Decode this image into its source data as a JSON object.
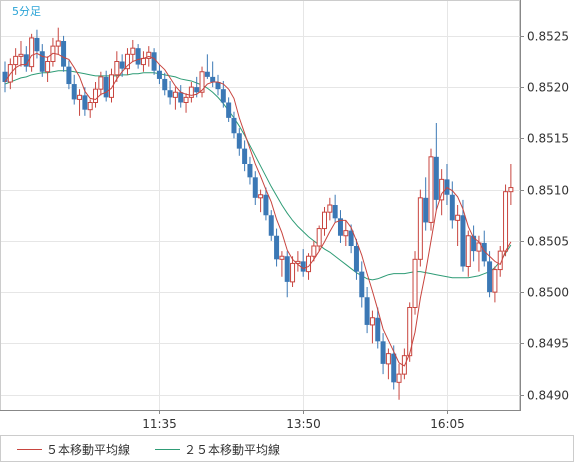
{
  "chart_data": {
    "type": "candlestick",
    "period_label": "5分足",
    "y_ticks": [
      "0.8525",
      "0.8520",
      "0.8515",
      "0.8510",
      "0.8505",
      "0.8500",
      "0.8495",
      "0.8490"
    ],
    "ylim": [
      0.84885,
      0.85285
    ],
    "x_ticks": [
      {
        "label": "11:35",
        "index": 29
      },
      {
        "label": "13:50",
        "index": 56
      },
      {
        "label": "16:05",
        "index": 83
      }
    ],
    "grid": true,
    "legend_position": "bottom-left",
    "colors": {
      "up": "#c8453f",
      "down": "#3b78b5",
      "ma5": "#c8453f",
      "ma25": "#2f9c76",
      "grid": "#e6e6e6",
      "axis": "#888888",
      "panel_border": "#cccccc",
      "period_label": "#29a3d6"
    },
    "series": [
      {
        "name": "５本移動平均線",
        "color": "#c8453f"
      },
      {
        "name": "２５本移動平均線",
        "color": "#2f9c76"
      }
    ],
    "candles": [
      [
        0.85215,
        0.85225,
        0.85195,
        0.85205
      ],
      [
        0.85205,
        0.85228,
        0.85198,
        0.85222
      ],
      [
        0.85222,
        0.85238,
        0.85212,
        0.8523
      ],
      [
        0.8523,
        0.85245,
        0.8522,
        0.85232
      ],
      [
        0.85232,
        0.8524,
        0.85215,
        0.8522
      ],
      [
        0.8522,
        0.85252,
        0.85215,
        0.85248
      ],
      [
        0.85248,
        0.85256,
        0.85228,
        0.85235
      ],
      [
        0.85235,
        0.85242,
        0.8521,
        0.85215
      ],
      [
        0.85215,
        0.8523,
        0.85205,
        0.85225
      ],
      [
        0.85225,
        0.85248,
        0.8522,
        0.8524
      ],
      [
        0.8524,
        0.85258,
        0.85232,
        0.85245
      ],
      [
        0.85245,
        0.8525,
        0.85215,
        0.8522
      ],
      [
        0.8522,
        0.85226,
        0.85198,
        0.85203
      ],
      [
        0.85203,
        0.85212,
        0.85183,
        0.85188
      ],
      [
        0.85188,
        0.85198,
        0.85172,
        0.85192
      ],
      [
        0.85192,
        0.852,
        0.85172,
        0.85178
      ],
      [
        0.85178,
        0.85188,
        0.8517,
        0.85185
      ],
      [
        0.85185,
        0.85205,
        0.8518,
        0.85198
      ],
      [
        0.85198,
        0.85215,
        0.85192,
        0.8521
      ],
      [
        0.8521,
        0.85216,
        0.85186,
        0.8519
      ],
      [
        0.8519,
        0.85218,
        0.85185,
        0.85212
      ],
      [
        0.85212,
        0.85235,
        0.85205,
        0.85225
      ],
      [
        0.85225,
        0.85232,
        0.8521,
        0.85218
      ],
      [
        0.85218,
        0.85238,
        0.85212,
        0.85232
      ],
      [
        0.85232,
        0.85246,
        0.85225,
        0.85238
      ],
      [
        0.85238,
        0.85242,
        0.85218,
        0.85222
      ],
      [
        0.85222,
        0.85235,
        0.85215,
        0.85228
      ],
      [
        0.85228,
        0.8524,
        0.8522,
        0.85234
      ],
      [
        0.85234,
        0.85238,
        0.85212,
        0.85216
      ],
      [
        0.85216,
        0.85222,
        0.85203,
        0.85208
      ],
      [
        0.85208,
        0.85214,
        0.85192,
        0.85197
      ],
      [
        0.85197,
        0.85206,
        0.85183,
        0.8519
      ],
      [
        0.8519,
        0.852,
        0.85178,
        0.85195
      ],
      [
        0.85195,
        0.85202,
        0.8518,
        0.85185
      ],
      [
        0.85185,
        0.85194,
        0.85175,
        0.8519
      ],
      [
        0.8519,
        0.85205,
        0.85185,
        0.852
      ],
      [
        0.852,
        0.8521,
        0.8519,
        0.85195
      ],
      [
        0.85195,
        0.8522,
        0.8519,
        0.85215
      ],
      [
        0.85215,
        0.85232,
        0.85208,
        0.8521
      ],
      [
        0.8521,
        0.85225,
        0.852,
        0.85205
      ],
      [
        0.85205,
        0.85212,
        0.85192,
        0.85198
      ],
      [
        0.85198,
        0.85206,
        0.8518,
        0.85185
      ],
      [
        0.85185,
        0.8519,
        0.85166,
        0.8517
      ],
      [
        0.8517,
        0.85176,
        0.8515,
        0.85155
      ],
      [
        0.85155,
        0.8516,
        0.85133,
        0.8514
      ],
      [
        0.8514,
        0.85148,
        0.85118,
        0.85125
      ],
      [
        0.85125,
        0.85132,
        0.85105,
        0.85112
      ],
      [
        0.85112,
        0.85118,
        0.85085,
        0.85092
      ],
      [
        0.85092,
        0.851,
        0.85078,
        0.85095
      ],
      [
        0.85095,
        0.85102,
        0.8507,
        0.85075
      ],
      [
        0.85075,
        0.8508,
        0.8505,
        0.85055
      ],
      [
        0.85055,
        0.85062,
        0.85025,
        0.85032
      ],
      [
        0.85032,
        0.8504,
        0.85015,
        0.85035
      ],
      [
        0.85035,
        0.8504,
        0.84995,
        0.8501
      ],
      [
        0.8501,
        0.85035,
        0.85005,
        0.85028
      ],
      [
        0.85028,
        0.8504,
        0.8502,
        0.8503
      ],
      [
        0.8503,
        0.85042,
        0.85015,
        0.8502
      ],
      [
        0.8502,
        0.85038,
        0.85012,
        0.85035
      ],
      [
        0.85035,
        0.8505,
        0.8503,
        0.85045
      ],
      [
        0.85045,
        0.85065,
        0.8504,
        0.85062
      ],
      [
        0.85062,
        0.85083,
        0.85055,
        0.85078
      ],
      [
        0.85078,
        0.85092,
        0.8507,
        0.85085
      ],
      [
        0.85085,
        0.85095,
        0.85068,
        0.85072
      ],
      [
        0.85072,
        0.8508,
        0.85048,
        0.85055
      ],
      [
        0.85055,
        0.8507,
        0.85045,
        0.8506
      ],
      [
        0.8506,
        0.85066,
        0.85038,
        0.85045
      ],
      [
        0.85045,
        0.85052,
        0.85012,
        0.8502
      ],
      [
        0.8502,
        0.8503,
        0.84985,
        0.84995
      ],
      [
        0.84995,
        0.85005,
        0.8496,
        0.84968
      ],
      [
        0.84968,
        0.84982,
        0.8495,
        0.84975
      ],
      [
        0.84975,
        0.84985,
        0.84945,
        0.84952
      ],
      [
        0.84952,
        0.8496,
        0.8492,
        0.8493
      ],
      [
        0.8493,
        0.84945,
        0.84915,
        0.8494
      ],
      [
        0.8494,
        0.84948,
        0.84905,
        0.84912
      ],
      [
        0.84912,
        0.8493,
        0.84895,
        0.8492
      ],
      [
        0.8492,
        0.84945,
        0.84915,
        0.84938
      ],
      [
        0.84938,
        0.8499,
        0.84932,
        0.84985
      ],
      [
        0.84985,
        0.8504,
        0.84978,
        0.85032
      ],
      [
        0.85032,
        0.851,
        0.85025,
        0.85092
      ],
      [
        0.85092,
        0.85112,
        0.8506,
        0.85068
      ],
      [
        0.85068,
        0.8514,
        0.8506,
        0.85132
      ],
      [
        0.85132,
        0.85165,
        0.8508,
        0.8509
      ],
      [
        0.8509,
        0.8512,
        0.85075,
        0.8511
      ],
      [
        0.8511,
        0.85125,
        0.85085,
        0.85095
      ],
      [
        0.85095,
        0.85108,
        0.85062,
        0.8507
      ],
      [
        0.8507,
        0.85085,
        0.85045,
        0.85075
      ],
      [
        0.85075,
        0.8509,
        0.8502,
        0.85025
      ],
      [
        0.85025,
        0.8506,
        0.85015,
        0.85055
      ],
      [
        0.85055,
        0.85065,
        0.8503,
        0.8504
      ],
      [
        0.8504,
        0.85055,
        0.8502,
        0.85048
      ],
      [
        0.85048,
        0.8506,
        0.85025,
        0.8503
      ],
      [
        0.8503,
        0.8504,
        0.84995,
        0.85
      ],
      [
        0.85,
        0.85025,
        0.8499,
        0.85022
      ],
      [
        0.85022,
        0.85045,
        0.85015,
        0.8504
      ],
      [
        0.8504,
        0.85105,
        0.85035,
        0.85098
      ],
      [
        0.85098,
        0.85125,
        0.85085,
        0.85102
      ]
    ],
    "ma5": [
      0.85205,
      0.85213,
      0.85219,
      0.85222,
      0.85222,
      0.85231,
      0.85233,
      0.8523,
      0.85229,
      0.85233,
      0.85232,
      0.85229,
      0.85227,
      0.85219,
      0.8521,
      0.85196,
      0.85189,
      0.85188,
      0.85193,
      0.85195,
      0.85199,
      0.85208,
      0.85215,
      0.85221,
      0.85225,
      0.85227,
      0.85228,
      0.8523,
      0.85228,
      0.85222,
      0.85217,
      0.85209,
      0.85201,
      0.85195,
      0.85193,
      0.85192,
      0.85193,
      0.85197,
      0.85203,
      0.85205,
      0.85205,
      0.85203,
      0.85198,
      0.85189,
      0.8517,
      0.85155,
      0.8514,
      0.85125,
      0.85113,
      0.851,
      0.85088,
      0.85071,
      0.85058,
      0.85041,
      0.85032,
      0.85027,
      0.85023,
      0.85025,
      0.85032,
      0.8504,
      0.85049,
      0.85059,
      0.85068,
      0.8507,
      0.8507,
      0.85063,
      0.8505,
      0.85036,
      0.85018,
      0.85001,
      0.84983,
      0.84964,
      0.84953,
      0.84942,
      0.84931,
      0.84928,
      0.8494,
      0.84961,
      0.84994,
      0.8502,
      0.8505,
      0.8508,
      0.85096,
      0.85102,
      0.85099,
      0.85093,
      0.85081,
      0.85064,
      0.85053,
      0.85049,
      0.8504,
      0.85035,
      0.8503,
      0.85027,
      0.8504,
      0.85049
    ],
    "ma25": [
      0.85203,
      0.85205,
      0.85207,
      0.85209,
      0.8521,
      0.85212,
      0.85213,
      0.85214,
      0.85214,
      0.85215,
      0.85216,
      0.85216,
      0.85216,
      0.85215,
      0.85214,
      0.85213,
      0.85212,
      0.85211,
      0.85211,
      0.85211,
      0.85211,
      0.85211,
      0.85212,
      0.85212,
      0.85213,
      0.85213,
      0.85214,
      0.85214,
      0.85214,
      0.85213,
      0.85212,
      0.85211,
      0.8521,
      0.85208,
      0.85207,
      0.85206,
      0.85204,
      0.85202,
      0.85199,
      0.85195,
      0.8519,
      0.85184,
      0.85177,
      0.8517,
      0.85162,
      0.85153,
      0.85143,
      0.85133,
      0.85123,
      0.85113,
      0.85103,
      0.85094,
      0.85085,
      0.85077,
      0.8507,
      0.85064,
      0.85059,
      0.85054,
      0.8505,
      0.85046,
      0.85042,
      0.85039,
      0.85035,
      0.85031,
      0.85027,
      0.85023,
      0.85019,
      0.85016,
      0.85013,
      0.85012,
      0.85013,
      0.85015,
      0.85017,
      0.85018,
      0.85018,
      0.85018,
      0.85019,
      0.8502,
      0.8502,
      0.85019,
      0.85018,
      0.85017,
      0.85016,
      0.85015,
      0.85014,
      0.85014,
      0.85014,
      0.85014,
      0.85015,
      0.85016,
      0.85018,
      0.8502,
      0.85024,
      0.8503,
      0.85038,
      0.85046
    ]
  }
}
